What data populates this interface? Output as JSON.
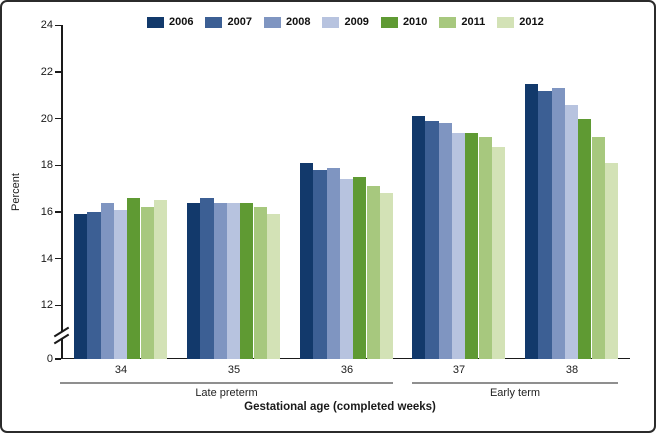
{
  "chart_data": {
    "type": "bar",
    "title": "",
    "ylabel": "Percent",
    "xlabel": "Gestational age (completed weeks)",
    "categories": [
      "34",
      "35",
      "36",
      "37",
      "38"
    ],
    "series": [
      {
        "name": "2006",
        "color": "#12396b",
        "values": [
          15.9,
          16.4,
          18.1,
          20.1,
          21.5
        ]
      },
      {
        "name": "2007",
        "color": "#3c5f94",
        "values": [
          16.0,
          16.6,
          17.8,
          19.9,
          21.2
        ]
      },
      {
        "name": "2008",
        "color": "#7f95c1",
        "values": [
          16.4,
          16.4,
          17.9,
          19.8,
          21.3
        ]
      },
      {
        "name": "2009",
        "color": "#b7c3df",
        "values": [
          16.1,
          16.4,
          17.4,
          19.4,
          20.6
        ]
      },
      {
        "name": "2010",
        "color": "#5f9a33",
        "values": [
          16.6,
          16.4,
          17.5,
          19.4,
          20.0
        ]
      },
      {
        "name": "2011",
        "color": "#a7c87e",
        "values": [
          16.2,
          16.2,
          17.1,
          19.2,
          19.2
        ]
      },
      {
        "name": "2012",
        "color": "#d3e2b6",
        "values": [
          16.5,
          15.9,
          16.8,
          18.8,
          18.1
        ]
      }
    ],
    "y_ticks": [
      0,
      12,
      14,
      16,
      18,
      20,
      22,
      24
    ],
    "ylim_display": [
      12,
      24
    ],
    "axis_break_between": [
      0,
      12
    ],
    "grid": false,
    "legend_position": "top",
    "group_spans": [
      {
        "label": "Late preterm",
        "categories": [
          "34",
          "35",
          "36"
        ]
      },
      {
        "label": "Early term",
        "categories": [
          "37",
          "38"
        ]
      }
    ]
  }
}
